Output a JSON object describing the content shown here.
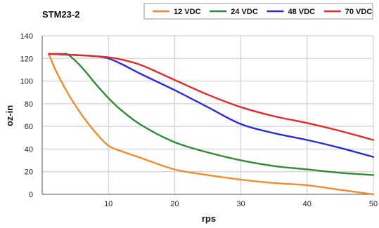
{
  "chart_data": {
    "type": "line",
    "title": "STM23-2",
    "xlabel": "rps",
    "ylabel": "oz-in",
    "xlim": [
      0,
      50
    ],
    "ylim": [
      0,
      140
    ],
    "xticks": [
      10,
      20,
      30,
      40,
      50
    ],
    "yticks": [
      0,
      20,
      40,
      60,
      80,
      100,
      120,
      140
    ],
    "grid": true,
    "legend": "top",
    "series": [
      {
        "name": "12 VDC",
        "color": "#f28a2e",
        "x": [
          1,
          2,
          4,
          6,
          8,
          10,
          12,
          15,
          20,
          25,
          30,
          35,
          40,
          45,
          50
        ],
        "y": [
          124,
          110,
          88,
          70,
          55,
          43,
          38,
          32,
          22,
          17,
          13,
          10,
          8,
          4,
          0
        ]
      },
      {
        "name": "24 VDC",
        "color": "#2f8a35",
        "x": [
          1,
          3,
          4,
          6,
          8,
          10,
          12,
          15,
          20,
          25,
          30,
          35,
          40,
          45,
          50
        ],
        "y": [
          124,
          124,
          123,
          112,
          98,
          85,
          74,
          61,
          46,
          37,
          30,
          25,
          22,
          19,
          17
        ]
      },
      {
        "name": "48 VDC",
        "color": "#2a2ae0",
        "x": [
          1,
          5,
          8,
          10,
          12,
          15,
          20,
          25,
          30,
          35,
          40,
          45,
          50
        ],
        "y": [
          124,
          123,
          122,
          120,
          115,
          106,
          92,
          77,
          62,
          54,
          48,
          41,
          33
        ]
      },
      {
        "name": "70 VDC",
        "color": "#e12a2a",
        "x": [
          1,
          5,
          8,
          10,
          12,
          15,
          20,
          25,
          30,
          35,
          40,
          45,
          50
        ],
        "y": [
          124,
          123,
          122,
          121,
          119,
          114,
          101,
          88,
          77,
          69,
          63,
          56,
          48
        ]
      }
    ]
  }
}
